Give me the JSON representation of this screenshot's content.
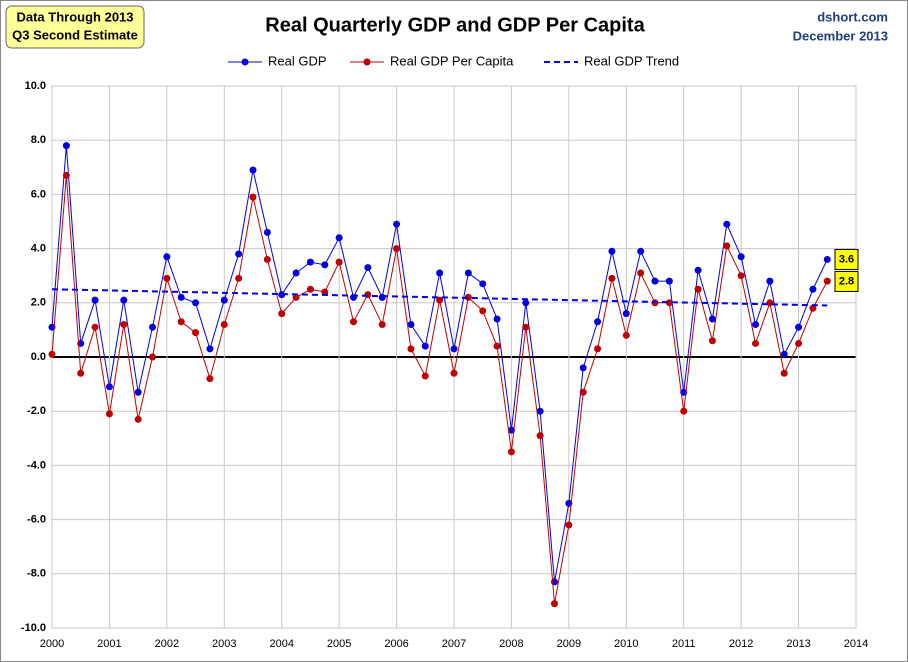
{
  "chart_data": {
    "type": "line",
    "title": "Real Quarterly GDP and GDP Per Capita",
    "note": [
      "Data Through 2013",
      "Q3 Second Estimate"
    ],
    "source": [
      "dshort.com",
      "December 2013"
    ],
    "x": [
      2000,
      2000.25,
      2000.5,
      2000.75,
      2001,
      2001.25,
      2001.5,
      2001.75,
      2002,
      2002.25,
      2002.5,
      2002.75,
      2003,
      2003.25,
      2003.5,
      2003.75,
      2004,
      2004.25,
      2004.5,
      2004.75,
      2005,
      2005.25,
      2005.5,
      2005.75,
      2006,
      2006.25,
      2006.5,
      2006.75,
      2007,
      2007.25,
      2007.5,
      2007.75,
      2008,
      2008.25,
      2008.5,
      2008.75,
      2009,
      2009.25,
      2009.5,
      2009.75,
      2010,
      2010.25,
      2010.5,
      2010.75,
      2011,
      2011.25,
      2011.5,
      2011.75,
      2012,
      2012.25,
      2012.5,
      2012.75,
      2013,
      2013.25,
      2013.5
    ],
    "series": [
      {
        "name": "Real GDP",
        "color": "#0000e0",
        "marker": true,
        "end_label": true,
        "values": [
          1.1,
          7.8,
          0.5,
          2.1,
          -1.1,
          2.1,
          -1.3,
          1.1,
          3.7,
          2.2,
          2.0,
          0.3,
          2.1,
          3.8,
          6.9,
          4.6,
          2.3,
          3.1,
          3.5,
          3.4,
          4.4,
          2.2,
          3.3,
          2.2,
          4.9,
          1.2,
          0.4,
          3.1,
          0.3,
          3.1,
          2.7,
          1.4,
          -2.7,
          2.0,
          -2.0,
          -8.3,
          -5.4,
          -0.4,
          1.3,
          3.9,
          1.6,
          3.9,
          2.8,
          2.8,
          -1.3,
          3.2,
          1.4,
          4.9,
          3.7,
          1.2,
          2.8,
          0.1,
          1.1,
          2.5,
          3.6
        ]
      },
      {
        "name": "Real GDP Per Capita",
        "color": "#c00000",
        "marker": true,
        "end_label": true,
        "values": [
          0.1,
          6.7,
          -0.6,
          1.1,
          -2.1,
          1.2,
          -2.3,
          0.0,
          2.9,
          1.3,
          0.9,
          -0.8,
          1.2,
          2.9,
          5.9,
          3.6,
          1.6,
          2.2,
          2.5,
          2.4,
          3.5,
          1.3,
          2.3,
          1.2,
          4.0,
          0.3,
          -0.7,
          2.1,
          -0.6,
          2.2,
          1.7,
          0.4,
          -3.5,
          1.1,
          -2.9,
          -9.1,
          -6.2,
          -1.3,
          0.3,
          2.9,
          0.8,
          3.1,
          2.0,
          2.0,
          -2.0,
          2.5,
          0.6,
          4.1,
          3.0,
          0.5,
          2.0,
          -0.6,
          0.5,
          1.8,
          2.8
        ]
      },
      {
        "name": "Real GDP Trend",
        "color": "#0000e0",
        "dashed": true,
        "x": [
          2000,
          2013.5
        ],
        "values": [
          2.5,
          1.9
        ]
      }
    ],
    "xlim": [
      2000,
      2014
    ],
    "xticks": [
      2000,
      2001,
      2002,
      2003,
      2004,
      2005,
      2006,
      2007,
      2008,
      2009,
      2010,
      2011,
      2012,
      2013,
      2014
    ],
    "ylim": [
      -10,
      10
    ],
    "yticks": [
      {
        "value": -10,
        "label": "-10.0"
      },
      {
        "value": -8,
        "label": "-8.0"
      },
      {
        "value": -6,
        "label": "-6.0"
      },
      {
        "value": -4,
        "label": "-4.0"
      },
      {
        "value": -2,
        "label": "-2.0"
      },
      {
        "value": 0,
        "label": "0.0"
      },
      {
        "value": 2,
        "label": "2.0"
      },
      {
        "value": 4,
        "label": "4.0"
      },
      {
        "value": 6,
        "label": "6.0"
      },
      {
        "value": 8,
        "label": "8.0"
      },
      {
        "value": 10,
        "label": "10.0"
      }
    ],
    "grid": true
  }
}
